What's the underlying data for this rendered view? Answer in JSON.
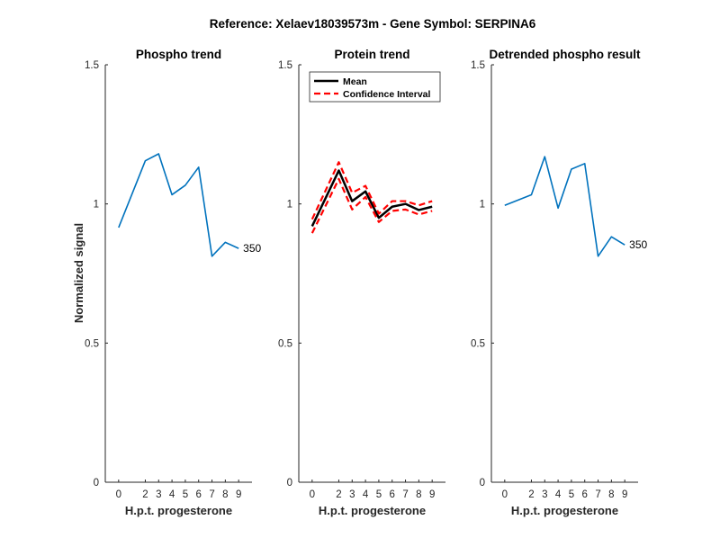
{
  "figure": {
    "suptitle": "Reference:  Xelaev18039573m - Gene Symbol:  SERPINA6",
    "ylabel": "Normalized signal"
  },
  "chart_data": [
    {
      "type": "line",
      "title": "Phospho trend",
      "xlabel": "H.p.t. progesterone",
      "x": [
        0,
        2,
        3,
        4,
        5,
        6,
        7,
        8,
        9
      ],
      "ylim": [
        0,
        1.5
      ],
      "yticks": [
        "0",
        "0.5",
        "1",
        "1.5"
      ],
      "series": [
        {
          "values": [
            0.915,
            1.155,
            1.18,
            1.033,
            1.067,
            1.132,
            0.812,
            0.862,
            0.84
          ],
          "color": "#0072bd",
          "end_label": "350"
        }
      ]
    },
    {
      "type": "line",
      "title": "Protein trend",
      "xlabel": "H.p.t. progesterone",
      "x": [
        0,
        2,
        3,
        4,
        5,
        6,
        7,
        8,
        9
      ],
      "ylim": [
        0,
        1.5
      ],
      "yticks": [
        "0",
        "0.5",
        "1",
        "1.5"
      ],
      "legend": {
        "position": "top-left",
        "entries": [
          "Mean",
          "Confidence Interval"
        ]
      },
      "series": [
        {
          "name": "Mean",
          "values": [
            0.92,
            1.12,
            1.01,
            1.045,
            0.95,
            0.99,
            1.0,
            0.978,
            0.99
          ],
          "color": "#000000",
          "style": "solid"
        },
        {
          "name": "Confidence Interval",
          "values": [
            0.945,
            1.15,
            1.04,
            1.065,
            0.965,
            1.01,
            1.01,
            0.995,
            1.01
          ],
          "color": "#ff0000",
          "style": "dashed"
        },
        {
          "values": [
            0.895,
            1.09,
            0.98,
            1.025,
            0.935,
            0.975,
            0.98,
            0.962,
            0.975
          ],
          "color": "#ff0000",
          "style": "dashed"
        }
      ]
    },
    {
      "type": "line",
      "title": "Detrended phospho result",
      "xlabel": "H.p.t. progesterone",
      "x": [
        0,
        2,
        3,
        4,
        5,
        6,
        7,
        8,
        9
      ],
      "ylim": [
        0,
        1.5
      ],
      "yticks": [
        "0",
        "0.5",
        "1",
        "1.5"
      ],
      "series": [
        {
          "values": [
            0.995,
            1.033,
            1.17,
            0.985,
            1.125,
            1.145,
            0.812,
            0.882,
            0.853
          ],
          "color": "#0072bd",
          "end_label": "350"
        }
      ]
    }
  ]
}
